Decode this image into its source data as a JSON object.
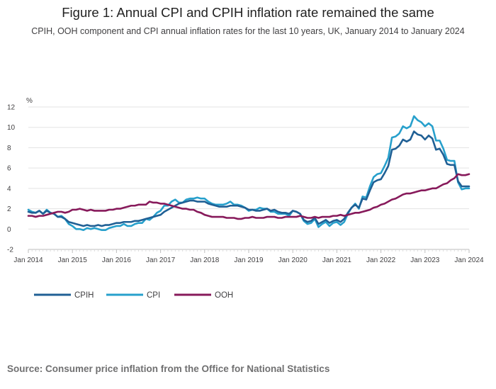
{
  "title": "Figure 1: Annual CPI and CPIH inflation rate remained the same",
  "subtitle": "CPIH, OOH component and CPI annual inflation rates for the last 10 years, UK, January 2014 to January 2024",
  "source": "Source: Consumer price inflation from the Office for National Statistics",
  "chart_data": {
    "type": "line",
    "title": "Figure 1: Annual CPI and CPIH inflation rate remained the same",
    "ylabel": "%",
    "xlabel": "",
    "ylim": [
      -2,
      12
    ],
    "yticks": [
      -2,
      0,
      2,
      4,
      6,
      8,
      10,
      12
    ],
    "xticks": [
      "Jan 2014",
      "Jan 2015",
      "Jan 2016",
      "Jan 2017",
      "Jan 2018",
      "Jan 2019",
      "Jan 2020",
      "Jan 2021",
      "Jan 2022",
      "Jan 2023",
      "Jan 2024"
    ],
    "grid": true,
    "legend": "bottom-left",
    "series": [
      {
        "name": "CPIH",
        "color": "#206095",
        "values": [
          1.7,
          1.6,
          1.6,
          1.8,
          1.5,
          1.8,
          1.6,
          1.5,
          1.2,
          1.2,
          1.0,
          0.7,
          0.6,
          0.5,
          0.4,
          0.3,
          0.4,
          0.3,
          0.3,
          0.4,
          0.3,
          0.4,
          0.4,
          0.5,
          0.6,
          0.6,
          0.7,
          0.7,
          0.7,
          0.8,
          0.8,
          0.9,
          1.0,
          1.1,
          1.2,
          1.3,
          1.4,
          1.7,
          1.9,
          2.1,
          2.3,
          2.5,
          2.6,
          2.7,
          2.8,
          2.8,
          2.7,
          2.7,
          2.7,
          2.5,
          2.4,
          2.3,
          2.2,
          2.2,
          2.2,
          2.3,
          2.3,
          2.3,
          2.2,
          2.1,
          1.9,
          1.9,
          1.8,
          1.8,
          1.9,
          2.0,
          1.8,
          1.9,
          1.7,
          1.6,
          1.6,
          1.5,
          1.8,
          1.7,
          1.5,
          0.9,
          0.7,
          0.8,
          1.1,
          0.5,
          0.7,
          0.9,
          0.6,
          0.8,
          0.9,
          0.7,
          1.0,
          1.6,
          2.1,
          2.4,
          2.1,
          3.0,
          2.9,
          3.8,
          4.6,
          4.8,
          4.9,
          5.5,
          6.2,
          7.8,
          7.9,
          8.2,
          8.8,
          8.6,
          8.8,
          9.6,
          9.3,
          9.2,
          8.8,
          9.2,
          8.9,
          7.8,
          7.9,
          7.3,
          6.4,
          6.3,
          6.3,
          4.7,
          4.2,
          4.2,
          4.2
        ],
        "latest": 4.2
      },
      {
        "name": "CPI",
        "color": "#27a0cc",
        "values": [
          1.9,
          1.7,
          1.6,
          1.8,
          1.5,
          1.9,
          1.6,
          1.5,
          1.2,
          1.3,
          1.0,
          0.5,
          0.3,
          0.0,
          0.0,
          -0.1,
          0.1,
          0.0,
          0.1,
          0.0,
          -0.1,
          -0.1,
          0.1,
          0.2,
          0.3,
          0.3,
          0.5,
          0.3,
          0.3,
          0.5,
          0.6,
          0.6,
          1.0,
          0.9,
          1.2,
          1.6,
          1.8,
          2.3,
          2.3,
          2.7,
          2.9,
          2.6,
          2.6,
          2.9,
          3.0,
          3.0,
          3.1,
          3.0,
          3.0,
          2.7,
          2.5,
          2.4,
          2.4,
          2.4,
          2.5,
          2.7,
          2.4,
          2.4,
          2.3,
          2.1,
          1.8,
          1.9,
          1.9,
          2.1,
          2.0,
          2.0,
          1.7,
          1.7,
          1.5,
          1.5,
          1.5,
          1.3,
          1.8,
          1.7,
          1.5,
          0.8,
          0.5,
          0.6,
          1.0,
          0.2,
          0.5,
          0.7,
          0.3,
          0.6,
          0.7,
          0.4,
          0.7,
          1.5,
          2.1,
          2.5,
          2.0,
          3.2,
          3.1,
          4.2,
          5.1,
          5.4,
          5.5,
          6.2,
          7.0,
          9.0,
          9.1,
          9.4,
          10.1,
          9.9,
          10.1,
          11.1,
          10.7,
          10.5,
          10.1,
          10.4,
          10.1,
          8.7,
          8.7,
          7.9,
          6.8,
          6.7,
          6.7,
          4.6,
          3.9,
          4.0,
          4.0
        ],
        "latest": 4.0
      },
      {
        "name": "OOH",
        "color": "#871a5b",
        "values": [
          1.3,
          1.3,
          1.2,
          1.3,
          1.3,
          1.4,
          1.5,
          1.6,
          1.7,
          1.7,
          1.6,
          1.7,
          1.9,
          1.9,
          2.0,
          1.9,
          1.8,
          1.9,
          1.8,
          1.8,
          1.8,
          1.8,
          1.9,
          1.9,
          2.0,
          2.0,
          2.1,
          2.2,
          2.3,
          2.3,
          2.4,
          2.4,
          2.4,
          2.7,
          2.6,
          2.6,
          2.5,
          2.5,
          2.4,
          2.3,
          2.2,
          2.1,
          2.0,
          2.0,
          1.9,
          1.9,
          1.7,
          1.6,
          1.4,
          1.3,
          1.2,
          1.2,
          1.2,
          1.2,
          1.1,
          1.1,
          1.1,
          1.0,
          1.0,
          1.1,
          1.1,
          1.2,
          1.1,
          1.1,
          1.1,
          1.2,
          1.2,
          1.2,
          1.1,
          1.1,
          1.2,
          1.2,
          1.2,
          1.2,
          1.3,
          1.2,
          1.1,
          1.1,
          1.2,
          1.1,
          1.2,
          1.2,
          1.2,
          1.3,
          1.3,
          1.4,
          1.3,
          1.4,
          1.5,
          1.6,
          1.6,
          1.7,
          1.8,
          1.9,
          2.1,
          2.2,
          2.4,
          2.5,
          2.7,
          2.9,
          3.0,
          3.2,
          3.4,
          3.5,
          3.5,
          3.6,
          3.7,
          3.8,
          3.8,
          3.9,
          4.0,
          4.0,
          4.2,
          4.4,
          4.5,
          4.8,
          5.0,
          5.4,
          5.3,
          5.3,
          5.4
        ],
        "latest": 5.4
      }
    ]
  }
}
